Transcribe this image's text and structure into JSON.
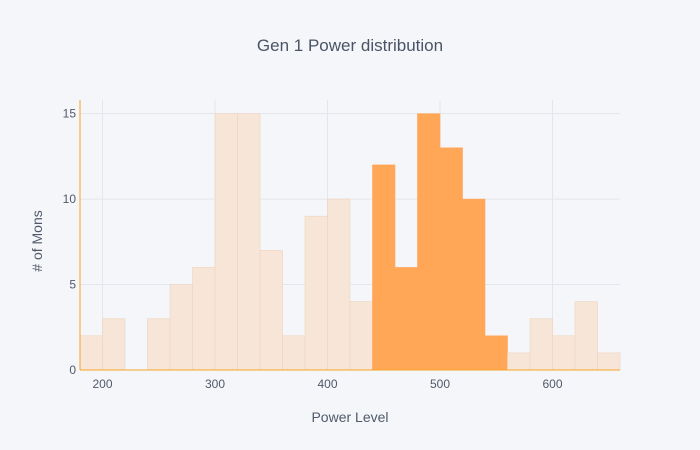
{
  "chart_data": {
    "type": "bar",
    "title": "Gen 1 Power distribution",
    "xlabel": "Power Level",
    "ylabel": "# of Mons",
    "xlim": [
      180,
      660
    ],
    "ylim": [
      0,
      15.8
    ],
    "bin_width": 20,
    "x_ticks": [
      200,
      300,
      400,
      500,
      600
    ],
    "y_ticks": [
      0,
      5,
      10,
      15
    ],
    "grid": true,
    "legend": "none",
    "bins": [
      {
        "start": 180,
        "end": 200,
        "count": 2,
        "highlighted": false
      },
      {
        "start": 200,
        "end": 220,
        "count": 3,
        "highlighted": false
      },
      {
        "start": 220,
        "end": 240,
        "count": 0,
        "highlighted": false
      },
      {
        "start": 240,
        "end": 260,
        "count": 3,
        "highlighted": false
      },
      {
        "start": 260,
        "end": 280,
        "count": 5,
        "highlighted": false
      },
      {
        "start": 280,
        "end": 300,
        "count": 6,
        "highlighted": false
      },
      {
        "start": 300,
        "end": 320,
        "count": 15,
        "highlighted": false
      },
      {
        "start": 320,
        "end": 340,
        "count": 15,
        "highlighted": false
      },
      {
        "start": 340,
        "end": 360,
        "count": 7,
        "highlighted": false
      },
      {
        "start": 360,
        "end": 380,
        "count": 2,
        "highlighted": false
      },
      {
        "start": 380,
        "end": 400,
        "count": 9,
        "highlighted": false
      },
      {
        "start": 400,
        "end": 420,
        "count": 10,
        "highlighted": false
      },
      {
        "start": 420,
        "end": 440,
        "count": 4,
        "highlighted": false
      },
      {
        "start": 440,
        "end": 460,
        "count": 12,
        "highlighted": true
      },
      {
        "start": 460,
        "end": 480,
        "count": 6,
        "highlighted": true
      },
      {
        "start": 480,
        "end": 500,
        "count": 15,
        "highlighted": true
      },
      {
        "start": 500,
        "end": 520,
        "count": 13,
        "highlighted": true
      },
      {
        "start": 520,
        "end": 540,
        "count": 10,
        "highlighted": true
      },
      {
        "start": 540,
        "end": 560,
        "count": 2,
        "highlighted": true
      },
      {
        "start": 560,
        "end": 580,
        "count": 1,
        "highlighted": false
      },
      {
        "start": 580,
        "end": 600,
        "count": 3,
        "highlighted": false
      },
      {
        "start": 600,
        "end": 620,
        "count": 2,
        "highlighted": false
      },
      {
        "start": 620,
        "end": 640,
        "count": 4,
        "highlighted": false
      },
      {
        "start": 640,
        "end": 660,
        "count": 1,
        "highlighted": false
      }
    ],
    "colors": {
      "highlight_fill": "#ffa657",
      "muted_fill": "#f7e6d8",
      "muted_edge": "#efd3bd",
      "axis_line": "#f5a623",
      "grid": "#e3e6ec",
      "background": "#f5f6f9"
    }
  }
}
